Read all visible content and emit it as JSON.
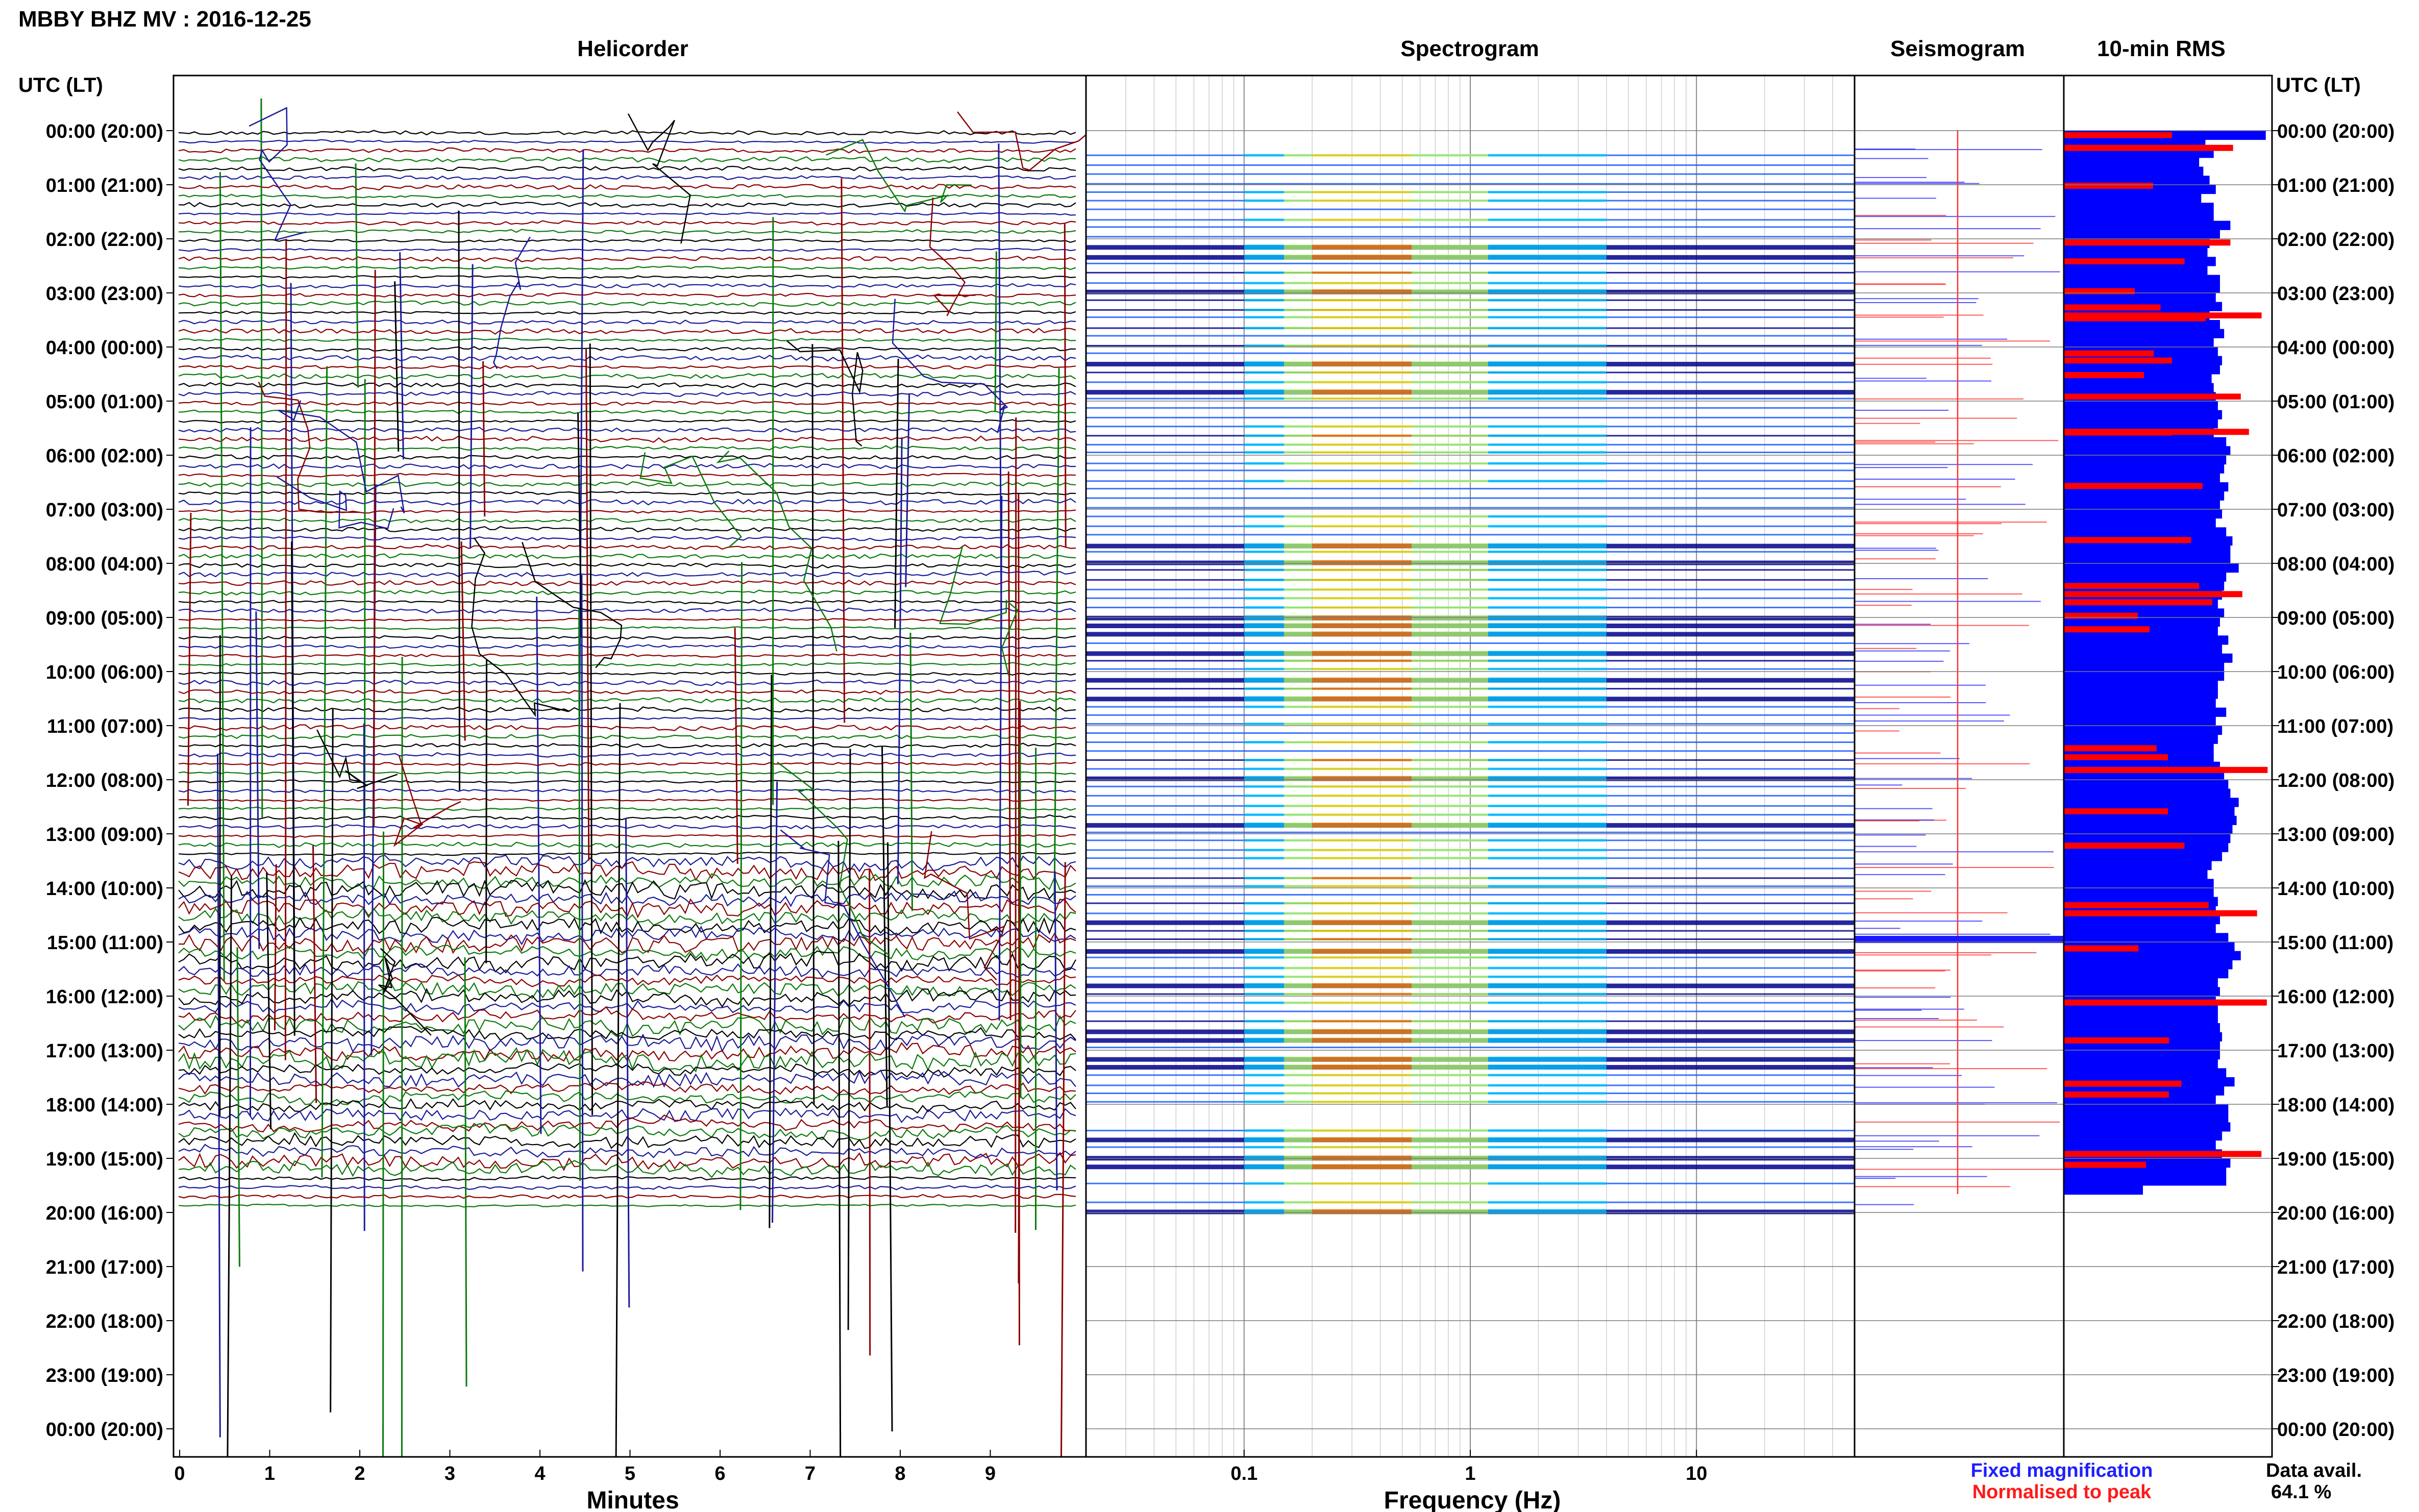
{
  "header": {
    "title": "MBBY BHZ MV : 2016-12-25",
    "utc_label_left": "UTC (LT)",
    "utc_label_right": "UTC (LT)"
  },
  "panels": {
    "helicorder_title": "Helicorder",
    "spectrogram_title": "Spectrogram",
    "seismogram_title": "Seismogram",
    "rms_title": "10-min RMS"
  },
  "axes": {
    "minutes_label": "Minutes",
    "frequency_label": "Frequency (Hz)",
    "minute_ticks": [
      "0",
      "1",
      "2",
      "3",
      "4",
      "5",
      "6",
      "7",
      "8",
      "9"
    ],
    "freq_ticks": [
      "0.1",
      "1",
      "10"
    ]
  },
  "legend": {
    "fixed": "Fixed magnification",
    "normalised": "Normalised to peak",
    "fixed_color": "#1f1fff",
    "normalised_color": "#ff1a1a"
  },
  "data_avail": {
    "label": "Data avail.",
    "value": "64.1 %"
  },
  "hour_labels": [
    "00:00 (20:00)",
    "01:00 (21:00)",
    "02:00 (22:00)",
    "03:00 (23:00)",
    "04:00 (00:00)",
    "05:00 (01:00)",
    "06:00 (02:00)",
    "07:00 (03:00)",
    "08:00 (04:00)",
    "09:00 (05:00)",
    "10:00 (06:00)",
    "11:00 (07:00)",
    "12:00 (08:00)",
    "13:00 (09:00)",
    "14:00 (10:00)",
    "15:00 (11:00)",
    "16:00 (12:00)",
    "17:00 (13:00)",
    "18:00 (14:00)",
    "19:00 (15:00)",
    "20:00 (16:00)",
    "21:00 (17:00)",
    "22:00 (18:00)",
    "23:00 (19:00)",
    "00:00 (20:00)"
  ],
  "chart_data": {
    "type": "heatmap",
    "trace_colors": [
      "#000000",
      "#1a1a9a",
      "#8b0000",
      "#0b7a0b"
    ],
    "spectrogram_colors": [
      "#00008b",
      "#1a5cff",
      "#00c8ff",
      "#b4ff64",
      "#ffe600",
      "#ff8c00"
    ],
    "rms": {
      "xlim": [
        0,
        1
      ],
      "fixed_color": "#0000ff",
      "normalised_color": "#ff0000",
      "fixed_values": [
        0.97,
        0.68,
        0.72,
        0.65,
        0.67,
        0.7,
        0.73,
        0.66,
        0.72,
        0.72,
        0.8,
        0.75,
        0.7,
        0.69,
        0.73,
        0.69,
        0.75,
        0.75,
        0.73,
        0.76,
        0.7,
        0.75,
        0.77,
        0.72,
        0.74,
        0.76,
        0.75,
        0.71,
        0.72,
        0.73,
        0.74,
        0.76,
        0.74,
        0.72,
        0.78,
        0.8,
        0.78,
        0.77,
        0.75,
        0.79,
        0.77,
        0.75,
        0.76,
        0.73,
        0.78,
        0.81,
        0.8,
        0.8,
        0.84,
        0.78,
        0.77,
        0.76,
        0.74,
        0.77,
        0.75,
        0.74,
        0.79,
        0.76,
        0.81,
        0.77,
        0.77,
        0.74,
        0.74,
        0.73,
        0.78,
        0.73,
        0.76,
        0.74,
        0.72,
        0.72,
        0.75,
        0.77,
        0.79,
        0.8,
        0.84,
        0.82,
        0.83,
        0.81,
        0.8,
        0.79,
        0.76,
        0.71,
        0.69,
        0.72,
        0.72,
        0.74,
        0.73,
        0.75,
        0.73,
        0.79,
        0.82,
        0.85,
        0.81,
        0.79,
        0.74,
        0.75,
        0.73,
        0.74,
        0.74,
        0.75,
        0.76,
        0.75,
        0.75,
        0.74,
        0.78,
        0.82,
        0.77,
        0.73,
        0.79,
        0.79,
        0.8,
        0.76,
        0.73,
        0.76,
        0.8,
        0.78,
        0.78,
        0.38
      ],
      "normalised_values": [
        0.52,
        0.0,
        0.0,
        0.0,
        0.0,
        0.0,
        0.0,
        0.0,
        0.0,
        0.0,
        0.0,
        0.0,
        0.0,
        0.0,
        0.58,
        0.0,
        0.0,
        0.0,
        0.0,
        0.0,
        0.95,
        0.0,
        0.0,
        0.0,
        0.0,
        0.52,
        0.0,
        0.0,
        0.0,
        0.85,
        0.0,
        0.0,
        0.0,
        0.52,
        0.0,
        0.0,
        0.0,
        0.0,
        0.0,
        0.0,
        0.0,
        0.0,
        0.0,
        0.0,
        0.0,
        0.0,
        0.0,
        0.0,
        0.0,
        0.0,
        0.65,
        0.0,
        0.0,
        0.0,
        0.0,
        0.0,
        0.0,
        0.0,
        0.0,
        0.0,
        0.0,
        0.0,
        0.0,
        0.0,
        0.0,
        0.0,
        0.0,
        0.0,
        0.0,
        0.5,
        0.0,
        0.0,
        0.0,
        0.0,
        0.0,
        0.5,
        0.0,
        0.0,
        0.0,
        0.0,
        0.0,
        0.0,
        0.0,
        0.0,
        0.0,
        0.0,
        0.0,
        0.0,
        0.0,
        0.0,
        0.0,
        0.0,
        0.0,
        0.0,
        0.0,
        0.0,
        0.0,
        0.0,
        0.0,
        0.0,
        0.0,
        0.0,
        0.0,
        0.0,
        0.0,
        0.0,
        0.0,
        0.0,
        0.0,
        0.0,
        0.0,
        0.0,
        0.0,
        0.0,
        0.0,
        0.0,
        0.0,
        0.0
      ]
    }
  }
}
